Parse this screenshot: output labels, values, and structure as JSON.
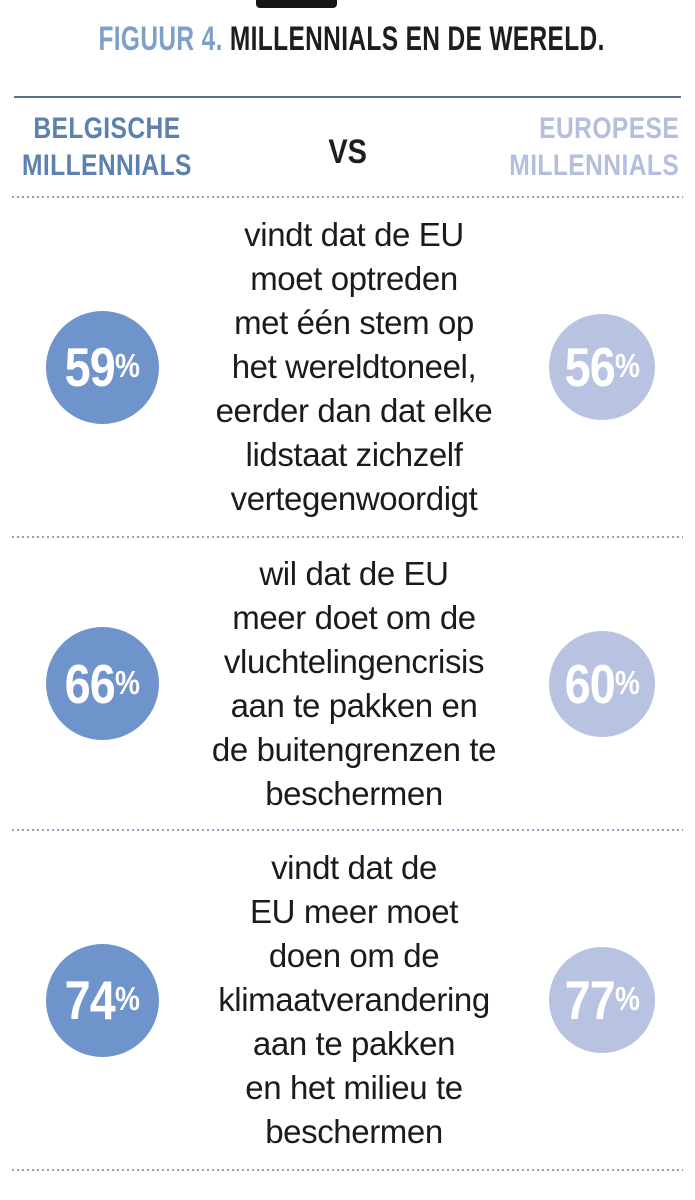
{
  "figure": {
    "title": {
      "prefix": "FIGUUR 4.",
      "main": " MILLENNIALS EN DE WERELD."
    },
    "header": {
      "left_label": "BELGISCHE\nMILLENNIALS",
      "vs_label": "VS",
      "right_label": "EUROPESE\nMILLENNIALS"
    },
    "percent_sign": "%",
    "rows": [
      {
        "left_value": "59",
        "right_value": "56",
        "text": "vindt dat de EU\nmoet optreden\nmet één stem op\nhet wereldtoneel,\neerder dan dat elke\nlidstaat zichzelf\nvertegenwoordigt"
      },
      {
        "left_value": "66",
        "right_value": "60",
        "text": "wil dat de EU\nmeer doet om de\nvluchtelingencrisis\naan te pakken en\nde buitengrenzen te\nbeschermen"
      },
      {
        "left_value": "74",
        "right_value": "77",
        "text": "vindt dat de\nEU meer moet\ndoen om de\nklimaatverandering\naan te pakken\nen het milieu te\nbeschermen"
      }
    ],
    "colors": {
      "belgian_circle_blue": "#6f93cb",
      "european_circle_blue": "#b8c3e2",
      "header_left_blue": "#5c80b0",
      "header_right_blue": "#b4bedd",
      "title_accent_blue": "#7da0c9",
      "text_black": "#1b1b1b",
      "rule_blue": "#5a7193",
      "dotted_line_blue": "#92a0bc"
    }
  },
  "chart_data": {
    "type": "table",
    "title": "FIGUUR 4. MILLENNIALS EN DE WERELD.",
    "unit": "%",
    "series": [
      {
        "name": "Belgische millennials",
        "values": [
          59,
          66,
          74
        ]
      },
      {
        "name": "Europese millennials",
        "values": [
          56,
          60,
          77
        ]
      }
    ],
    "categories": [
      "vindt dat de EU moet optreden met één stem op het wereldtoneel, eerder dan dat elke lidstaat zichzelf vertegenwoordigt",
      "wil dat de EU meer doet om de vluchtelingencrisis aan te pakken en de buitengrenzen te beschermen",
      "vindt dat de EU meer moet doen om de klimaatverandering aan te pakken en het milieu te beschermen"
    ]
  }
}
